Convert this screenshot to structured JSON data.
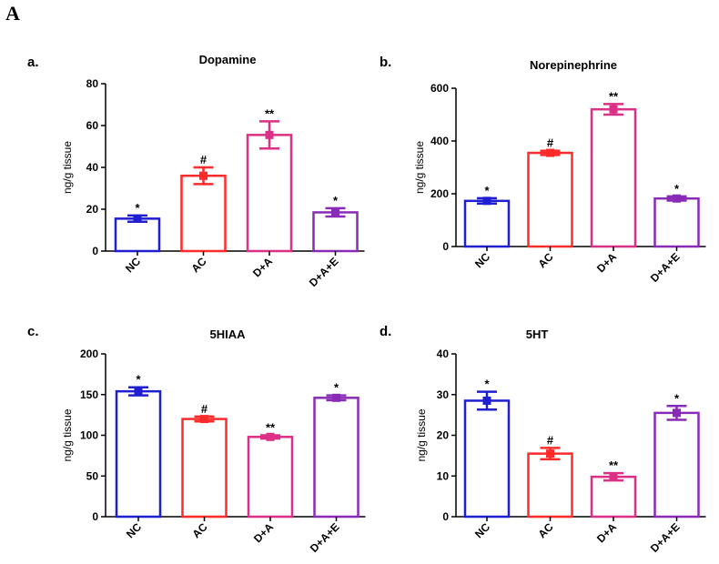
{
  "figure_label": "A",
  "chart_data": [
    {
      "type": "bar",
      "panel": "a.",
      "title": "Dopamine",
      "ylabel": "ng/g tissue",
      "ylim": [
        0,
        80
      ],
      "yticks": [
        0,
        20,
        40,
        60,
        80
      ],
      "categories": [
        "NC",
        "AC",
        "D+A",
        "D+A+E"
      ],
      "values": [
        15.5,
        36,
        55.5,
        18.5
      ],
      "errors": [
        1.5,
        4,
        6.5,
        2
      ],
      "annotations": [
        "*",
        "#",
        "**",
        "*"
      ],
      "colors": [
        "#1f1fd1",
        "#ff2a2a",
        "#dc2f86",
        "#8a2bb8"
      ]
    },
    {
      "type": "bar",
      "panel": "b.",
      "title": "Norepinephrine",
      "ylabel": "ng/g tissue",
      "ylim": [
        0,
        600
      ],
      "yticks": [
        0,
        200,
        400,
        600
      ],
      "categories": [
        "NC",
        "AC",
        "D+A",
        "D+A+E"
      ],
      "values": [
        173,
        355,
        520,
        182
      ],
      "errors": [
        10,
        8,
        20,
        8
      ],
      "annotations": [
        "*",
        "#",
        "**",
        "*"
      ],
      "colors": [
        "#1f1fd1",
        "#ff2a2a",
        "#dc2f86",
        "#8a2bb8"
      ]
    },
    {
      "type": "bar",
      "panel": "c.",
      "title": "5HIAA",
      "ylabel": "ng/g tissue",
      "ylim": [
        0,
        200
      ],
      "yticks": [
        0,
        50,
        100,
        150,
        200
      ],
      "categories": [
        "NC",
        "AC",
        "D+A",
        "D+A+E"
      ],
      "values": [
        154,
        120,
        98,
        146
      ],
      "errors": [
        5,
        3,
        2,
        3
      ],
      "annotations": [
        "*",
        "#",
        "**",
        "*"
      ],
      "colors": [
        "#1f1fd1",
        "#ff2a2a",
        "#dc2f86",
        "#8a2bb8"
      ]
    },
    {
      "type": "bar",
      "panel": "d.",
      "title": "5HT",
      "ylabel": "ng/g tissue",
      "ylim": [
        0,
        40
      ],
      "yticks": [
        0,
        10,
        20,
        30,
        40
      ],
      "categories": [
        "NC",
        "AC",
        "D+A",
        "D+A+E"
      ],
      "values": [
        28.5,
        15.5,
        9.8,
        25.5
      ],
      "errors": [
        2.2,
        1.4,
        0.9,
        1.7
      ],
      "annotations": [
        "*",
        "#",
        "**",
        "*"
      ],
      "colors": [
        "#1f1fd1",
        "#ff2a2a",
        "#dc2f86",
        "#8a2bb8"
      ]
    }
  ]
}
